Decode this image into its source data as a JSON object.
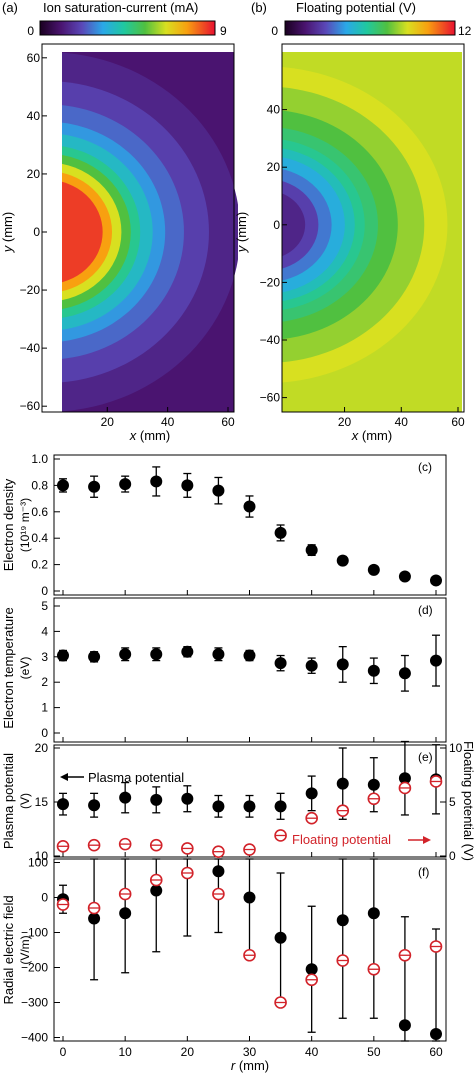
{
  "colors": {
    "black": "#000000",
    "red": "#d2232a"
  },
  "chart_data": [
    {
      "id": "a",
      "type": "heatmap",
      "panel_label": "(a)",
      "title": "Ion saturation-current (mA)",
      "colorbar_min": "0",
      "colorbar_max": "9",
      "xlabel_var": "x",
      "xlabel_unit": " (mm)",
      "ylabel_var": "y",
      "ylabel_unit": " (mm)",
      "xlim": [
        5,
        60
      ],
      "ylim": [
        -62,
        62
      ],
      "xticks": [
        20,
        40,
        60
      ],
      "xtick_labels": [
        "20",
        "40",
        "60"
      ],
      "yticks": [
        60,
        40,
        20,
        0,
        -20,
        -40,
        -60
      ],
      "ytick_labels": [
        "60",
        "40",
        "20",
        "0",
        "−20",
        "−40",
        "−60"
      ],
      "peak_value": 9,
      "center_x": 0
    },
    {
      "id": "b",
      "type": "heatmap",
      "panel_label": "(b)",
      "title": "Floating potential (V)",
      "colorbar_min": "0",
      "colorbar_max": "12",
      "xlabel_var": "x",
      "xlabel_unit": " (mm)",
      "ylabel_var": "y",
      "ylabel_unit": " (mm)",
      "xlim": [
        5,
        60
      ],
      "ylim": [
        -65,
        60
      ],
      "xticks": [
        20,
        40,
        60
      ],
      "xtick_labels": [
        "20",
        "40",
        "60"
      ],
      "yticks": [
        40,
        20,
        0,
        -20,
        -40,
        -60
      ],
      "ytick_labels": [
        "40",
        "20",
        "0",
        "−20",
        "−40",
        "−60"
      ],
      "min_value": 2,
      "center_x": 0
    },
    {
      "id": "c",
      "type": "scatter",
      "panel_label": "(c)",
      "ylabel_line1": "Electron density",
      "ylabel_line2": "(10¹⁹ m⁻³)",
      "ylim": [
        0,
        1.0
      ],
      "yticks": [
        0,
        0.2,
        0.4,
        0.6,
        0.8,
        1.0
      ],
      "ytick_labels": [
        "0",
        "0.2",
        "0.4",
        "0.6",
        "0.8",
        "1.0"
      ],
      "x": [
        0,
        5,
        10,
        15,
        20,
        25,
        30,
        35,
        40,
        45,
        50,
        55,
        60
      ],
      "y": [
        0.8,
        0.79,
        0.81,
        0.83,
        0.8,
        0.76,
        0.64,
        0.44,
        0.31,
        0.23,
        0.16,
        0.11,
        0.08
      ],
      "err": [
        0.05,
        0.08,
        0.06,
        0.11,
        0.09,
        0.1,
        0.08,
        0.06,
        0.04,
        0.03,
        0.02,
        0.01,
        0.01
      ]
    },
    {
      "id": "d",
      "type": "scatter",
      "panel_label": "(d)",
      "ylabel_line1": "Electron temperature",
      "ylabel_line2": "(eV)",
      "ylim": [
        0,
        5
      ],
      "yticks": [
        0,
        1,
        2,
        3,
        4,
        5
      ],
      "ytick_labels": [
        "0",
        "1",
        "2",
        "3",
        "4",
        "5"
      ],
      "x": [
        0,
        5,
        10,
        15,
        20,
        25,
        30,
        35,
        40,
        45,
        50,
        55,
        60
      ],
      "y": [
        3.05,
        3.0,
        3.1,
        3.1,
        3.2,
        3.1,
        3.05,
        2.75,
        2.65,
        2.7,
        2.45,
        2.35,
        2.85
      ],
      "err": [
        0.2,
        0.2,
        0.25,
        0.25,
        0.2,
        0.25,
        0.2,
        0.3,
        0.3,
        0.7,
        0.5,
        0.7,
        1.0
      ]
    },
    {
      "id": "e",
      "type": "scatter",
      "panel_label": "(e)",
      "ylabel": "Plasma potential",
      "ylabel_unit": "(V)",
      "ylim": [
        10,
        20
      ],
      "yticks": [
        10,
        15,
        20
      ],
      "ytick_labels": [
        "10",
        "15",
        "20"
      ],
      "ylabel_right": "Floating potential (V)",
      "ylim_right": [
        0,
        10
      ],
      "yticks_right": [
        0,
        5,
        10
      ],
      "ytick_labels_right": [
        "0",
        "5",
        "10"
      ],
      "annotation_left": "Plasma potential",
      "annotation_right": "Floating potential",
      "series": [
        {
          "axis": "left",
          "marker": "filled",
          "x": [
            0,
            5,
            10,
            15,
            20,
            25,
            30,
            35,
            40,
            45,
            50,
            55,
            60
          ],
          "y": [
            14.8,
            14.7,
            15.4,
            15.2,
            15.3,
            14.6,
            14.6,
            14.6,
            15.8,
            16.7,
            16.6,
            17.2,
            17.1
          ],
          "err": [
            1.0,
            1.1,
            1.4,
            1.2,
            1.2,
            1.0,
            1.0,
            1.2,
            1.6,
            3.3,
            2.5,
            3.4,
            3.2
          ]
        },
        {
          "axis": "right",
          "marker": "open-red",
          "x": [
            0,
            5,
            10,
            15,
            20,
            25,
            30,
            35,
            40,
            45,
            50,
            55,
            60
          ],
          "y": [
            0.9,
            1.0,
            1.1,
            1.0,
            0.7,
            0.4,
            0.6,
            1.9,
            3.5,
            4.2,
            5.3,
            6.3,
            6.9
          ],
          "err": [
            0.15,
            0.15,
            0.15,
            0.15,
            0.15,
            0.15,
            0.15,
            0.15,
            0.15,
            0.15,
            0.2,
            0.2,
            0.2
          ]
        }
      ]
    },
    {
      "id": "f",
      "type": "scatter",
      "panel_label": "(f)",
      "ylabel_line1": "Radial electric field",
      "ylabel_line2": "(V/m)",
      "xlabel_var": "r",
      "xlabel_unit": " (mm)",
      "xlim": [
        0,
        60
      ],
      "xticks": [
        0,
        10,
        20,
        30,
        40,
        50,
        60
      ],
      "xtick_labels": [
        "0",
        "10",
        "20",
        "30",
        "40",
        "50",
        "60"
      ],
      "ylim": [
        -410,
        110
      ],
      "yticks": [
        100,
        0,
        -100,
        -200,
        -300,
        -400
      ],
      "ytick_labels": [
        "100",
        "0",
        "−100",
        "−200",
        "−300",
        "−400"
      ],
      "series": [
        {
          "marker": "filled",
          "x": [
            0,
            5,
            10,
            15,
            20,
            25,
            30,
            35,
            40,
            45,
            50,
            55,
            60
          ],
          "y": [
            -5,
            -60,
            -45,
            20,
            70,
            75,
            0,
            -115,
            -205,
            -65,
            -45,
            -365,
            -390
          ],
          "err": [
            40,
            175,
            170,
            175,
            180,
            175,
            165,
            185,
            180,
            280,
            300,
            310,
            300
          ]
        },
        {
          "marker": "open-red",
          "x": [
            0,
            5,
            10,
            15,
            20,
            25,
            30,
            35,
            40,
            45,
            50,
            55,
            60
          ],
          "y": [
            -20,
            -30,
            10,
            50,
            70,
            10,
            -165,
            -300,
            -235,
            -180,
            -205,
            -165,
            -140
          ],
          "err": [
            8,
            8,
            8,
            8,
            8,
            8,
            8,
            8,
            8,
            8,
            8,
            8,
            8
          ]
        }
      ]
    }
  ]
}
